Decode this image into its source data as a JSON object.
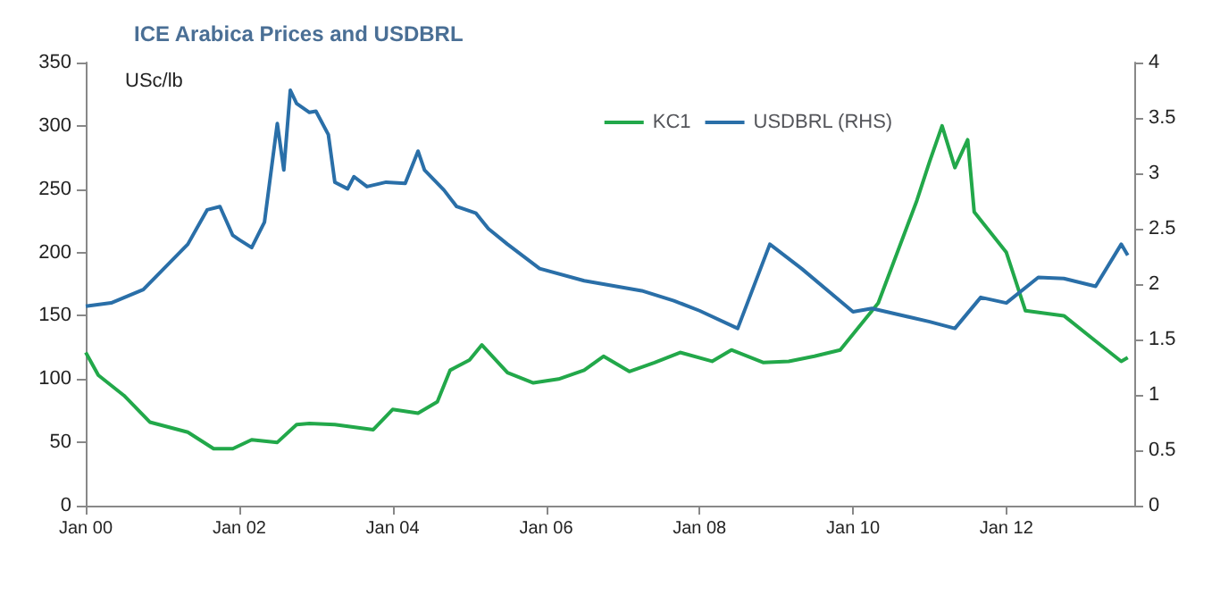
{
  "chart_data": {
    "type": "line",
    "title": "ICE Arabica Prices and USDBRL",
    "ylabel": "USc/lb",
    "legend": "top right",
    "grid": false,
    "marker": "none",
    "line_style": "solid",
    "xlim": [
      "2000-01",
      "2013-09"
    ],
    "xticks": [
      {
        "value": "2000-01",
        "label": "Jan 00"
      },
      {
        "value": "2002-01",
        "label": "Jan 02"
      },
      {
        "value": "2004-01",
        "label": "Jan 04"
      },
      {
        "value": "2006-01",
        "label": "Jan 06"
      },
      {
        "value": "2008-01",
        "label": "Jan 08"
      },
      {
        "value": "2010-01",
        "label": "Jan 10"
      },
      {
        "value": "2012-01",
        "label": "Jan 12"
      }
    ],
    "ylim": [
      0,
      350
    ],
    "yticks": [
      0,
      50,
      100,
      150,
      200,
      250,
      300,
      350
    ],
    "y2lim": [
      0,
      4
    ],
    "y2ticks": [
      0,
      0.5,
      1,
      1.5,
      2,
      2.5,
      3,
      3.5,
      4
    ],
    "series": [
      {
        "name": "KC1",
        "color": "#22a84a",
        "x": [
          "2000-01",
          "2000-03",
          "2000-07",
          "2000-11",
          "2001-05",
          "2001-09",
          "2001-12",
          "2002-03",
          "2002-07",
          "2002-10",
          "2002-12",
          "2003-04",
          "2003-10",
          "2004-01",
          "2004-05",
          "2004-08",
          "2004-10",
          "2005-01",
          "2005-03",
          "2005-07",
          "2005-11",
          "2006-03",
          "2006-07",
          "2006-10",
          "2007-02",
          "2007-06",
          "2007-10",
          "2008-03",
          "2008-06",
          "2008-11",
          "2009-03",
          "2009-07",
          "2009-11",
          "2010-05",
          "2010-11",
          "2011-01",
          "2011-03",
          "2011-05",
          "2011-07",
          "2011-08",
          "2012-01",
          "2012-04",
          "2012-10",
          "2013-03",
          "2013-07",
          "2013-08"
        ],
        "values": [
          121,
          103,
          87,
          66,
          58,
          45,
          45,
          52,
          50,
          64,
          65,
          64,
          60,
          76,
          73,
          82,
          107,
          115,
          127,
          105,
          97,
          100,
          107,
          118,
          106,
          113,
          121,
          114,
          123,
          113,
          114,
          118,
          123,
          160,
          241,
          272,
          300,
          267,
          289,
          232,
          200,
          154,
          150,
          130,
          114,
          117
        ]
      },
      {
        "name": "USDBRL (RHS)",
        "color": "#2a6fa8",
        "axis": "y2",
        "x": [
          "2000-01",
          "2000-05",
          "2000-10",
          "2001-05",
          "2001-08",
          "2001-10",
          "2001-12",
          "2002-01",
          "2002-03",
          "2002-05",
          "2002-07",
          "2002-08",
          "2002-09",
          "2002-10",
          "2002-12",
          "2003-01",
          "2003-03",
          "2003-04",
          "2003-06",
          "2003-07",
          "2003-09",
          "2003-12",
          "2004-03",
          "2004-05",
          "2004-06",
          "2004-09",
          "2004-11",
          "2005-02",
          "2005-04",
          "2005-07",
          "2005-12",
          "2006-07",
          "2007-04",
          "2007-09",
          "2008-01",
          "2008-07",
          "2008-12",
          "2009-05",
          "2010-01",
          "2010-04",
          "2011-01",
          "2011-05",
          "2011-09",
          "2012-01",
          "2012-06",
          "2012-10",
          "2013-03",
          "2013-07",
          "2013-08"
        ],
        "values": [
          1.8,
          1.83,
          1.95,
          2.36,
          2.67,
          2.7,
          2.44,
          2.4,
          2.33,
          2.56,
          3.45,
          3.03,
          3.75,
          3.63,
          3.55,
          3.56,
          3.35,
          2.92,
          2.86,
          2.97,
          2.88,
          2.92,
          2.91,
          3.2,
          3.03,
          2.85,
          2.7,
          2.64,
          2.5,
          2.36,
          2.14,
          2.03,
          1.94,
          1.85,
          1.76,
          1.6,
          2.36,
          2.14,
          1.75,
          1.78,
          1.66,
          1.6,
          1.88,
          1.83,
          2.06,
          2.05,
          1.98,
          2.36,
          2.26
        ]
      }
    ]
  }
}
